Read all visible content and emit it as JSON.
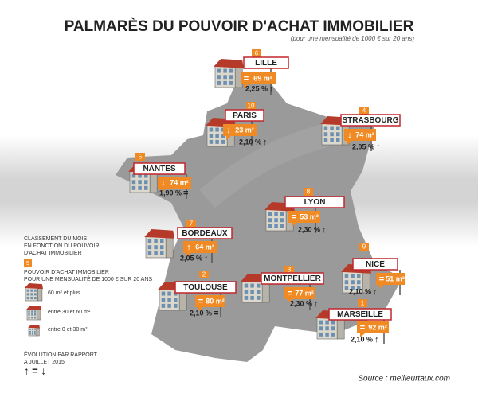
{
  "header": {
    "title": "PALMARÈS DU POUVOIR D'ACHAT IMMOBILIER",
    "subtitle": "(pour une mensualité de 1000 € sur 20 ans)"
  },
  "cities": [
    {
      "rank": "6",
      "name": "LILLE",
      "label_trend": "=",
      "area": "69 m²",
      "rate": "2,25 %",
      "trend": "↑"
    },
    {
      "rank": "10",
      "name": "PARIS",
      "label_trend": "↓",
      "area": "23 m²",
      "rate": "2,10 %",
      "trend": "↑"
    },
    {
      "rank": "4",
      "name": "STRASBOURG",
      "label_trend": "↓",
      "area": "74 m²",
      "rate": "2,05 %",
      "trend": "↑"
    },
    {
      "rank": "5",
      "name": "NANTES",
      "label_trend": "↓",
      "area": "74 m²",
      "rate": "1,90 %",
      "trend": "="
    },
    {
      "rank": "8",
      "name": "LYON",
      "label_trend": "=",
      "area": "53 m²",
      "rate": "2,30 %",
      "trend": "↑"
    },
    {
      "rank": "7",
      "name": "BORDEAUX",
      "label_trend": "↑",
      "area": "64 m²",
      "rate": "2,05 %",
      "trend": "↑"
    },
    {
      "rank": "9",
      "name": "NICE",
      "label_trend": "=",
      "area": "51 m²",
      "rate": "2,10 %",
      "trend": "↑"
    },
    {
      "rank": "2",
      "name": "TOULOUSE",
      "label_trend": "=",
      "area": "80 m²",
      "rate": "2,10 %",
      "trend": "="
    },
    {
      "rank": "3",
      "name": "MONTPELLIER",
      "label_trend": "=",
      "area": "77 m²",
      "rate": "2,30 %",
      "trend": "↑"
    },
    {
      "rank": "1",
      "name": "MARSEILLE",
      "label_trend": "=",
      "area": "92 m²",
      "rate": "2,10 %",
      "trend": "↑"
    }
  ],
  "legend": {
    "ranking": [
      "CLASSEMENT DU MOIS",
      "EN FONCTION DU POUVOIR",
      "D'ACHAT IMMOBILIER"
    ],
    "rank_example": "5",
    "power": [
      "POUVOIR D'ACHAT IMMOBILIER",
      "POUR UNE MENSUALITÉ DE 1000 € SUR 20 ANS"
    ],
    "sizes": [
      "60 m² et plus",
      "entre 30 et 60 m²",
      "entre 0 et 30 m²"
    ],
    "evolution": [
      "ÉVOLUTION PAR RAPPORT",
      "A JUILLET 2015"
    ],
    "symbols": "↑ = ↓"
  },
  "source": "Source : meilleurtaux.com"
}
